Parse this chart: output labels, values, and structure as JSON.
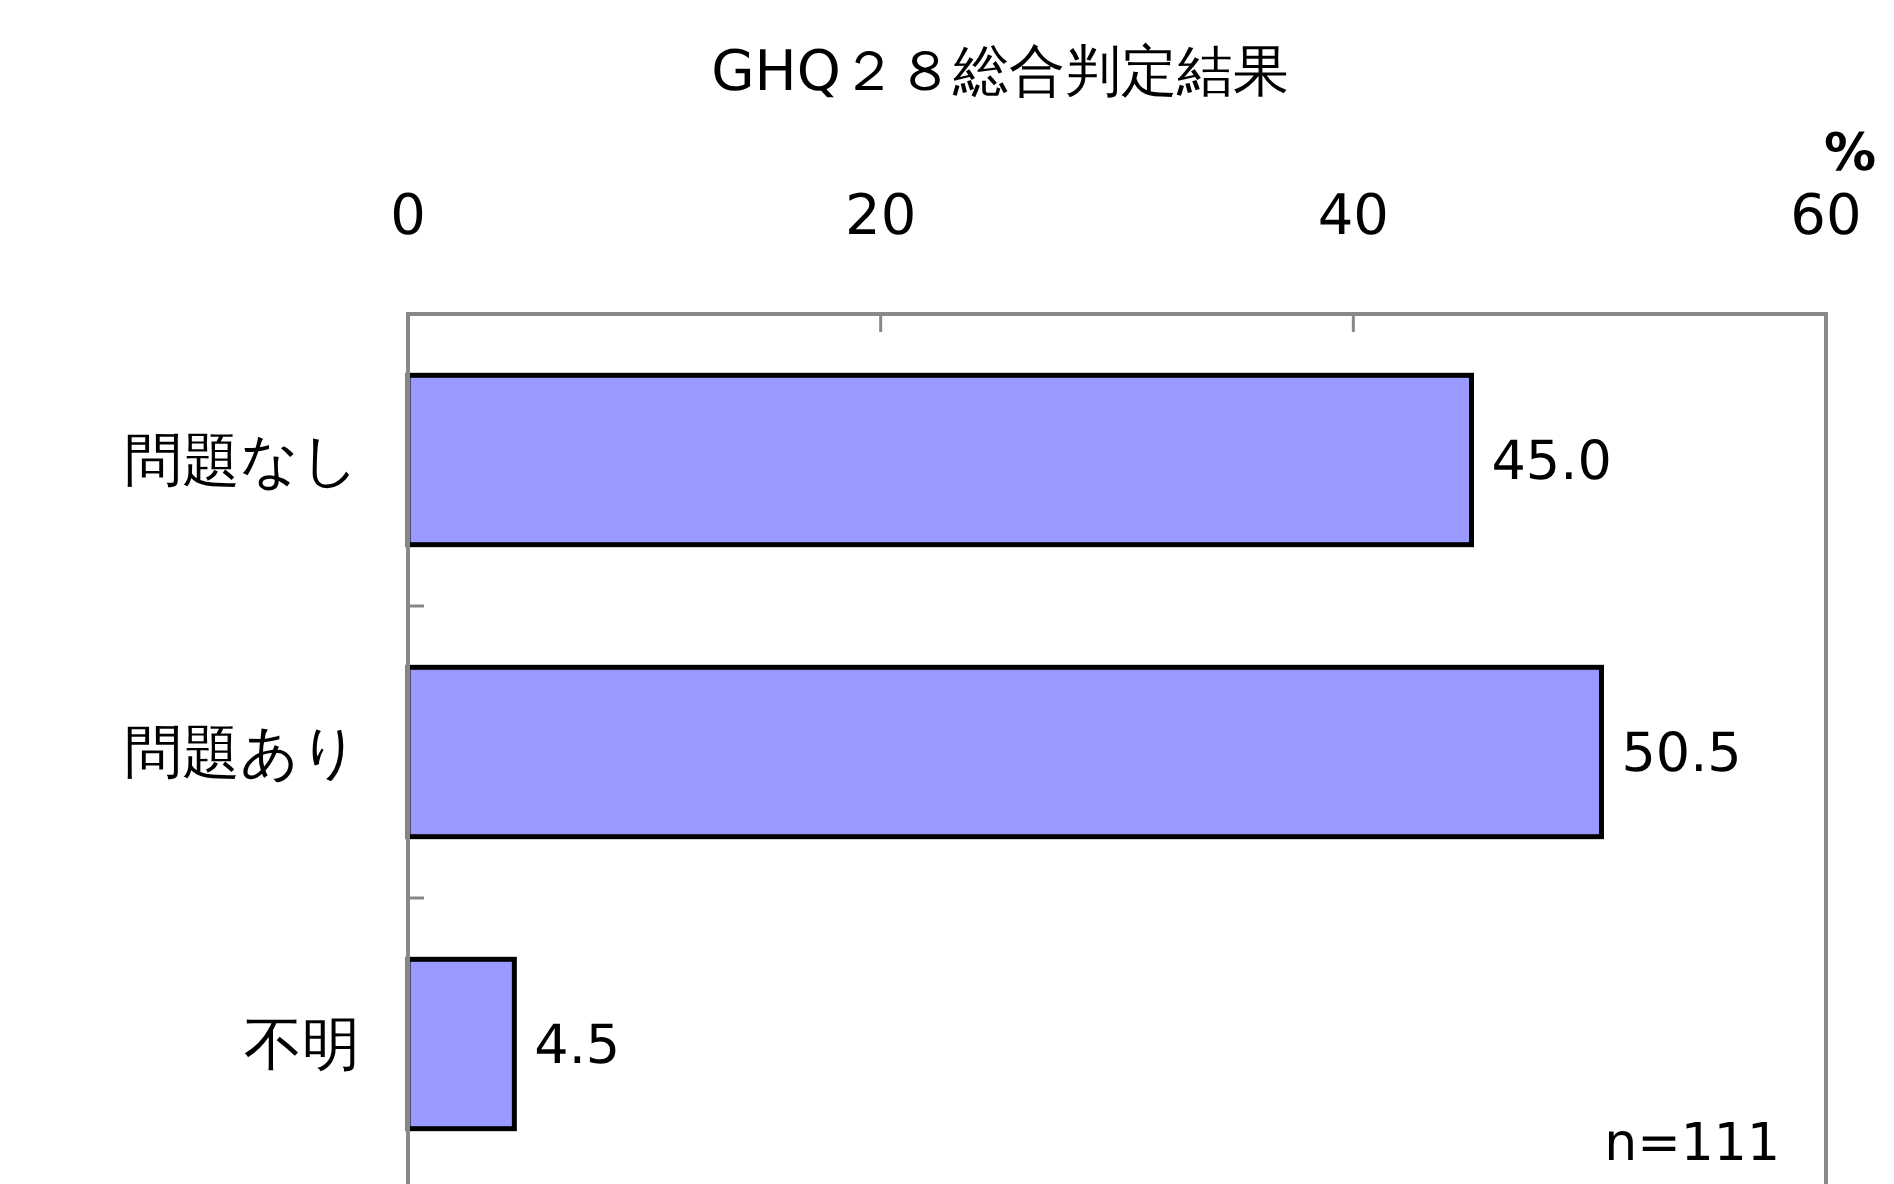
{
  "chart_data": {
    "type": "bar",
    "orientation": "horizontal",
    "title": "GHQ２８総合判定結果",
    "xlabel": "%",
    "categories": [
      "問題なし",
      "問題あり",
      "不明"
    ],
    "values": [
      45.0,
      50.5,
      4.5
    ],
    "color": "#9999ff",
    "value_labels": [
      "45.0",
      "50.5",
      "4.5"
    ],
    "xlim": [
      0,
      60
    ],
    "xticks": [
      0,
      20,
      40,
      60
    ],
    "grid": false,
    "annotations": [
      "n=111"
    ]
  }
}
